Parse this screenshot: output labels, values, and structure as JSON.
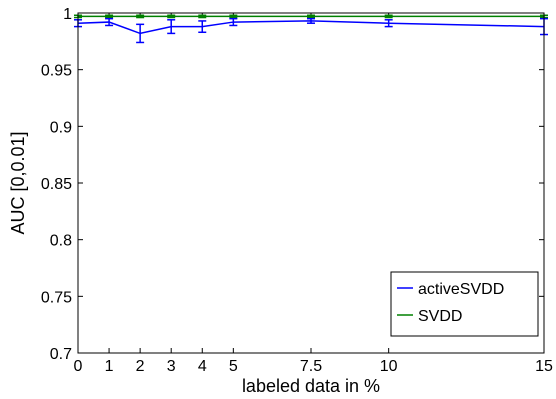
{
  "chart_data": {
    "type": "line",
    "xlabel": "labeled data in %",
    "ylabel": "AUC [0,0.01]",
    "xlim": [
      0,
      15
    ],
    "ylim": [
      0.7,
      1
    ],
    "xticks": [
      0,
      1,
      2,
      3,
      4,
      5,
      7.5,
      10,
      15
    ],
    "xtick_labels": [
      "0",
      "1",
      "2",
      "3",
      "4",
      "5",
      "7.5",
      "10",
      "15"
    ],
    "yticks": [
      0.7,
      0.75,
      0.8,
      0.85,
      0.9,
      0.95,
      1
    ],
    "ytick_labels": [
      "0.7",
      "0.75",
      "0.8",
      "0.85",
      "0.9",
      "0.95",
      "1"
    ],
    "grid": false,
    "legend_position": "bottom-right",
    "series": [
      {
        "name": "activeSVDD",
        "color": "#0000ff",
        "x": [
          0,
          1,
          2,
          3,
          4,
          5,
          7.5,
          10,
          15
        ],
        "y": [
          0.991,
          0.992,
          0.982,
          0.988,
          0.988,
          0.992,
          0.993,
          0.991,
          0.988
        ],
        "error": [
          0.003,
          0.003,
          0.008,
          0.006,
          0.005,
          0.003,
          0.002,
          0.003,
          0.007
        ]
      },
      {
        "name": "SVDD",
        "color": "#008000",
        "x": [
          0,
          1,
          2,
          3,
          4,
          5,
          7.5,
          10,
          15
        ],
        "y": [
          0.997,
          0.997,
          0.997,
          0.997,
          0.997,
          0.997,
          0.997,
          0.997,
          0.997
        ],
        "error": [
          0.001,
          0.001,
          0.001,
          0.001,
          0.001,
          0.001,
          0.001,
          0.001,
          0.001
        ]
      }
    ]
  }
}
